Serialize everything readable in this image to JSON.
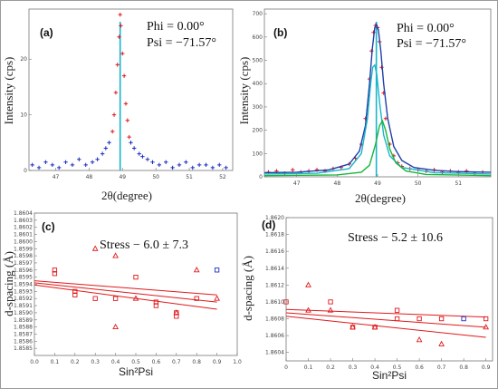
{
  "chart_data": [
    {
      "id": "a",
      "type": "scatter",
      "panel_label": "(a)",
      "xlabel": "2θ(degree)",
      "ylabel": "Intensity (cps)",
      "xlim": [
        46.2,
        52.3
      ],
      "ylim": [
        0,
        29
      ],
      "xticks": [
        "47",
        "48",
        "49",
        "50",
        "51",
        "52"
      ],
      "xtick_values": [
        47,
        48,
        49,
        50,
        51,
        52
      ],
      "yticks": [
        "0",
        "10",
        "20"
      ],
      "ytick_values": [
        0,
        10,
        20
      ],
      "annotations": [
        "Phi = 0.00°",
        "Psi = −71.57°"
      ],
      "peak_line_x": 48.93,
      "series": [
        {
          "color": "#1a2fbf",
          "marker": "+",
          "x": [
            46.3,
            46.5,
            46.7,
            46.9,
            47.1,
            47.3,
            47.5,
            47.7,
            47.9,
            48.1,
            48.25,
            48.4,
            48.5,
            48.6,
            49.25,
            49.35,
            49.5,
            49.6,
            49.75,
            49.9,
            50.1,
            50.3,
            50.5,
            50.7,
            50.9,
            51.1,
            51.3,
            51.5,
            51.7,
            51.9,
            52.1
          ],
          "y": [
            1,
            0.5,
            1.5,
            1,
            0.5,
            1.5,
            1,
            2,
            1,
            1.5,
            2,
            3,
            4,
            5,
            5,
            4,
            3,
            2.5,
            2,
            1.5,
            1,
            1.5,
            0.5,
            1,
            1.5,
            0.5,
            1,
            1,
            0.5,
            1,
            0.5
          ]
        },
        {
          "color": "#e0191b",
          "marker": "+",
          "x": [
            48.7,
            48.75,
            48.8,
            48.85,
            48.9,
            48.93,
            48.95,
            49.0,
            49.05,
            49.1,
            49.15,
            49.2
          ],
          "y": [
            7,
            10,
            14,
            19,
            24,
            28,
            26,
            21,
            17,
            12,
            9,
            6
          ]
        }
      ]
    },
    {
      "id": "b",
      "type": "line",
      "panel_label": "(b)",
      "xlabel": "2θ(degree)",
      "ylabel": "Intensity (cps)",
      "xlim": [
        46.2,
        51.8
      ],
      "ylim": [
        0,
        720
      ],
      "xticks": [
        "47",
        "48",
        "49",
        "50",
        "51"
      ],
      "xtick_values": [
        47,
        48,
        49,
        50,
        51
      ],
      "yticks": [
        "0",
        "100",
        "200",
        "300",
        "400",
        "500",
        "600",
        "700"
      ],
      "ytick_values": [
        0,
        100,
        200,
        300,
        400,
        500,
        600,
        700
      ],
      "annotations": [
        "Phi = 0.00°",
        "Psi = −71.57°"
      ],
      "peak_line_x": 48.97,
      "series": [
        {
          "color": "#e0191b",
          "marker": "+",
          "x": [
            46.3,
            46.5,
            46.7,
            46.9,
            47.1,
            47.3,
            47.5,
            47.7,
            47.9,
            48.1,
            48.3,
            48.45,
            48.6,
            48.7,
            48.8,
            48.85,
            48.9,
            48.95,
            49.0,
            49.05,
            49.1,
            49.15,
            49.2,
            49.3,
            49.4,
            49.5,
            49.6,
            49.8,
            50.0,
            50.2,
            50.4,
            50.6,
            50.8,
            51.0,
            51.2,
            51.4,
            51.6
          ],
          "y": [
            20,
            25,
            15,
            30,
            20,
            25,
            30,
            25,
            35,
            40,
            55,
            80,
            140,
            250,
            420,
            540,
            620,
            650,
            640,
            580,
            470,
            360,
            250,
            140,
            90,
            60,
            45,
            35,
            30,
            25,
            30,
            20,
            25,
            20,
            25,
            15,
            20
          ]
        },
        {
          "color": "#1f3fa8",
          "marker": "none",
          "x": [
            46.2,
            47.0,
            47.8,
            48.3,
            48.55,
            48.7,
            48.8,
            48.87,
            48.93,
            48.97,
            49.02,
            49.08,
            49.15,
            49.25,
            49.4,
            49.6,
            49.9,
            50.4,
            51.0,
            51.8
          ],
          "y": [
            18,
            20,
            30,
            55,
            110,
            220,
            400,
            550,
            640,
            655,
            630,
            540,
            400,
            250,
            130,
            70,
            40,
            28,
            22,
            20
          ]
        },
        {
          "color": "#19b5c9",
          "marker": "none",
          "x": [
            46.2,
            47.5,
            48.3,
            48.6,
            48.75,
            48.83,
            48.88,
            48.93,
            48.98,
            49.05,
            49.15,
            49.3,
            49.6,
            50.4,
            51.8
          ],
          "y": [
            12,
            15,
            35,
            100,
            250,
            400,
            470,
            480,
            440,
            320,
            180,
            90,
            40,
            18,
            12
          ]
        },
        {
          "color": "#19b53a",
          "marker": "none",
          "x": [
            46.2,
            48.0,
            48.6,
            48.8,
            48.95,
            49.05,
            49.12,
            49.2,
            49.3,
            49.45,
            49.7,
            50.2,
            51.8
          ],
          "y": [
            5,
            8,
            20,
            50,
            140,
            220,
            240,
            200,
            120,
            60,
            25,
            10,
            5
          ]
        }
      ]
    },
    {
      "id": "c",
      "type": "scatter",
      "panel_label": "(c)",
      "title": "Stress  − 6.0 ± 7.3",
      "xlabel": "Sin²Psi",
      "ylabel": "d-spacing (Å)",
      "xlim": [
        0,
        1
      ],
      "ylim": [
        1.8584,
        1.8604
      ],
      "xticks": [
        "0.0",
        "0.1",
        "0.2",
        "0.3",
        "0.4",
        "0.5",
        "0.6",
        "0.7",
        "0.8",
        "0.9",
        "1.0"
      ],
      "xtick_values": [
        0,
        0.1,
        0.2,
        0.3,
        0.4,
        0.5,
        0.6,
        0.7,
        0.8,
        0.9,
        1.0
      ],
      "yticks": [
        "1.8585",
        "1.8586",
        "1.8587",
        "1.8588",
        "1.8589",
        "1.8590",
        "1.8591",
        "1.8592",
        "1.8593",
        "1.8594",
        "1.8595",
        "1.8596",
        "1.8597",
        "1.8598",
        "1.8599",
        "1.8600",
        "1.8601",
        "1.8602",
        "1.8603",
        "1.8604"
      ],
      "ytick_values": [
        1.8585,
        1.8586,
        1.8587,
        1.8588,
        1.8589,
        1.859,
        1.8591,
        1.8592,
        1.8593,
        1.8594,
        1.8595,
        1.8596,
        1.8597,
        1.8598,
        1.8599,
        1.86,
        1.8601,
        1.8602,
        1.8603,
        1.8604
      ],
      "fit_lines": [
        {
          "x": [
            0,
            0.9
          ],
          "y": [
            1.85945,
            1.85925
          ]
        },
        {
          "x": [
            0,
            0.9
          ],
          "y": [
            1.85942,
            1.85915
          ]
        },
        {
          "x": [
            0,
            0.9
          ],
          "y": [
            1.85939,
            1.85905
          ]
        }
      ],
      "series": [
        {
          "color": "#e0191b",
          "marker": "square",
          "x": [
            0.1,
            0.1,
            0.2,
            0.2,
            0.3,
            0.4,
            0.5,
            0.6,
            0.6,
            0.7,
            0.7,
            0.8
          ],
          "y": [
            1.8596,
            1.85955,
            1.8593,
            1.85925,
            1.8592,
            1.8592,
            1.8595,
            1.85915,
            1.8591,
            1.859,
            1.85895,
            1.8592
          ]
        },
        {
          "color": "#e0191b",
          "marker": "triangle",
          "x": [
            0.3,
            0.4,
            0.4,
            0.5,
            0.7,
            0.8,
            0.9
          ],
          "y": [
            1.8599,
            1.8598,
            1.8588,
            1.8592,
            1.859,
            1.8596,
            1.8592
          ]
        },
        {
          "color": "#1a2fbf",
          "marker": "square",
          "x": [
            0.9
          ],
          "y": [
            1.8596
          ]
        }
      ]
    },
    {
      "id": "d",
      "type": "scatter",
      "panel_label": "(d)",
      "title": "Stress  − 5.2 ± 10.6",
      "xlabel": "Sin²Psi",
      "ylabel": "d-spacing (Å)",
      "xlim": [
        0,
        0.93
      ],
      "ylim": [
        1.8603,
        1.862
      ],
      "xticks": [
        "0",
        "0.1",
        "0.2",
        "0.3",
        "0.4",
        "0.5",
        "0.6",
        "0.7",
        "0.8",
        "0.9"
      ],
      "xtick_values": [
        0,
        0.1,
        0.2,
        0.3,
        0.4,
        0.5,
        0.6,
        0.7,
        0.8,
        0.9
      ],
      "yticks": [
        "1.8604",
        "1.8606",
        "1.8608",
        "1.8610",
        "1.8612",
        "1.8614",
        "1.8616",
        "1.8618",
        "1.8620"
      ],
      "ytick_values": [
        1.8604,
        1.8606,
        1.8608,
        1.861,
        1.8612,
        1.8614,
        1.8616,
        1.8618,
        1.862
      ],
      "fit_lines": [
        {
          "x": [
            0,
            0.9
          ],
          "y": [
            1.86091,
            1.86082
          ]
        },
        {
          "x": [
            0,
            0.9
          ],
          "y": [
            1.86087,
            1.8607
          ]
        },
        {
          "x": [
            0,
            0.9
          ],
          "y": [
            1.86083,
            1.86058
          ]
        }
      ],
      "series": [
        {
          "color": "#e0191b",
          "marker": "square",
          "x": [
            0,
            0.2,
            0.3,
            0.4,
            0.5,
            0.5,
            0.6,
            0.7,
            0.9
          ],
          "y": [
            1.861,
            1.861,
            1.8607,
            1.8607,
            1.8609,
            1.8608,
            1.8608,
            1.8608,
            1.8608
          ]
        },
        {
          "color": "#e0191b",
          "marker": "triangle",
          "x": [
            0.1,
            0.1,
            0.2,
            0.3,
            0.4,
            0.6,
            0.7,
            0.9
          ],
          "y": [
            1.8612,
            1.8609,
            1.8609,
            1.8607,
            1.8607,
            1.86055,
            1.8605,
            1.8607
          ]
        },
        {
          "color": "#1a2fbf",
          "marker": "square",
          "x": [
            0.8
          ],
          "y": [
            1.8608
          ]
        }
      ]
    }
  ]
}
